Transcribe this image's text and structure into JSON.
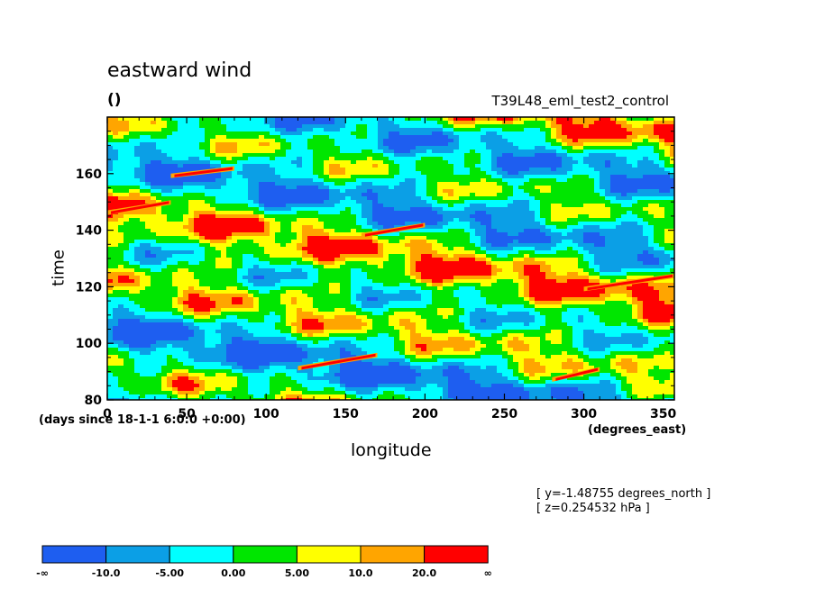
{
  "chart_data": {
    "type": "heatmap",
    "title": "eastward wind",
    "units_label": "()",
    "dataset_label": "T39L48_eml_test2_control",
    "xlabel": "longitude",
    "ylabel": "time",
    "x_units": "(degrees_east)",
    "y_units": "(days since 18-1-1 6:0:0 +0:00)",
    "xlim": [
      0,
      357
    ],
    "ylim": [
      80,
      180
    ],
    "x_ticks": [
      0,
      50,
      100,
      150,
      200,
      250,
      300,
      350
    ],
    "y_ticks": [
      80,
      100,
      120,
      140,
      160
    ],
    "info_lines": [
      "[ y=-1.48755 degrees_north ]",
      "[ z=0.254532 hPa ]"
    ],
    "colorbar": {
      "colors": [
        "#1e5ef0",
        "#0b9fe6",
        "#00ffff",
        "#00e600",
        "#ffff00",
        "#ffa500",
        "#ff0000"
      ],
      "labels": [
        "-∞",
        "-10.0",
        "-5.00",
        "0.00",
        "5.00",
        "10.0",
        "20.0",
        "∞"
      ]
    },
    "features": [
      {
        "x": [
          0,
          40
        ],
        "y": [
          147,
          150
        ],
        "level": "max"
      },
      {
        "x": [
          160,
          200
        ],
        "y": [
          139,
          142
        ],
        "level": "max"
      },
      {
        "x": [
          120,
          170
        ],
        "y": [
          92,
          96
        ],
        "level": "max"
      },
      {
        "x": [
          280,
          310
        ],
        "y": [
          88,
          91
        ],
        "level": "max"
      },
      {
        "x": [
          40,
          80
        ],
        "y": [
          160,
          162
        ],
        "level": "max"
      },
      {
        "x": [
          300,
          357
        ],
        "y": [
          120,
          124
        ],
        "level": "max"
      }
    ]
  }
}
